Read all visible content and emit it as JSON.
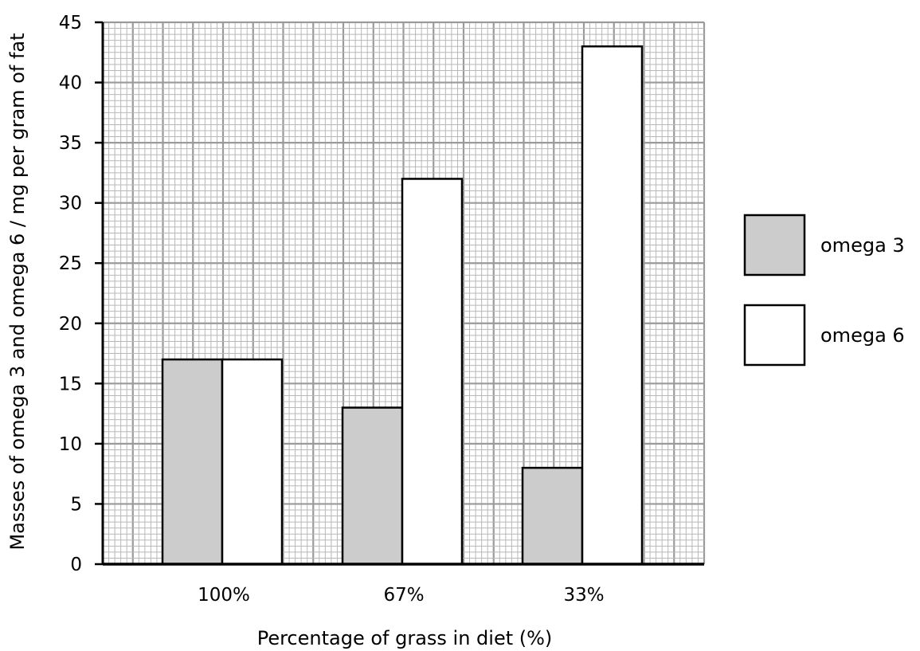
{
  "chart_data": {
    "type": "bar",
    "xlabel": "Percentage of grass in diet (%)",
    "ylabel": "Masses of omega 3 and omega 6 / mg per gram of fat",
    "categories": [
      "100%",
      "67%",
      "33%"
    ],
    "series": [
      {
        "name": "omega 3",
        "values": [
          17,
          13,
          8
        ],
        "color": "#cccccc"
      },
      {
        "name": "omega 6",
        "values": [
          17,
          32,
          43
        ],
        "color": "#ffffff"
      }
    ],
    "ylim": [
      0,
      45
    ],
    "yticks": [
      "0",
      "5",
      "10",
      "15",
      "20",
      "25",
      "30",
      "35",
      "40",
      "45"
    ],
    "grid": true,
    "legend_position": "right"
  }
}
